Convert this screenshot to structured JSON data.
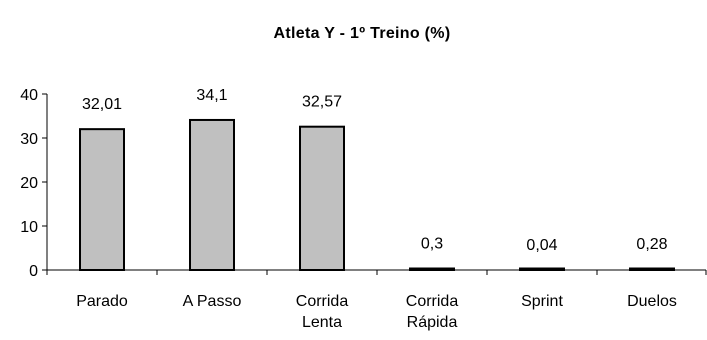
{
  "chart_data": {
    "type": "bar",
    "title": "Atleta Y - 1º Treino (%)",
    "xlabel": "",
    "ylabel": "",
    "categories": [
      [
        "Parado"
      ],
      [
        "A Passo"
      ],
      [
        "Corrida",
        "Lenta"
      ],
      [
        "Corrida",
        "Rápida"
      ],
      [
        "Sprint"
      ],
      [
        "Duelos"
      ]
    ],
    "values": [
      32.01,
      34.1,
      32.57,
      0.3,
      0.04,
      0.28
    ],
    "data_labels": [
      "32,01",
      "34,1",
      "32,57",
      "0,3",
      "0,04",
      "0,28"
    ],
    "ylim": [
      0,
      40
    ],
    "yticks": [
      0,
      10,
      20,
      30,
      40
    ],
    "grid": false,
    "legend": "none",
    "colors": {
      "bar": "#c0c0c0",
      "bar_border": "#000000",
      "axis": "#000000",
      "text": "#000000"
    }
  }
}
